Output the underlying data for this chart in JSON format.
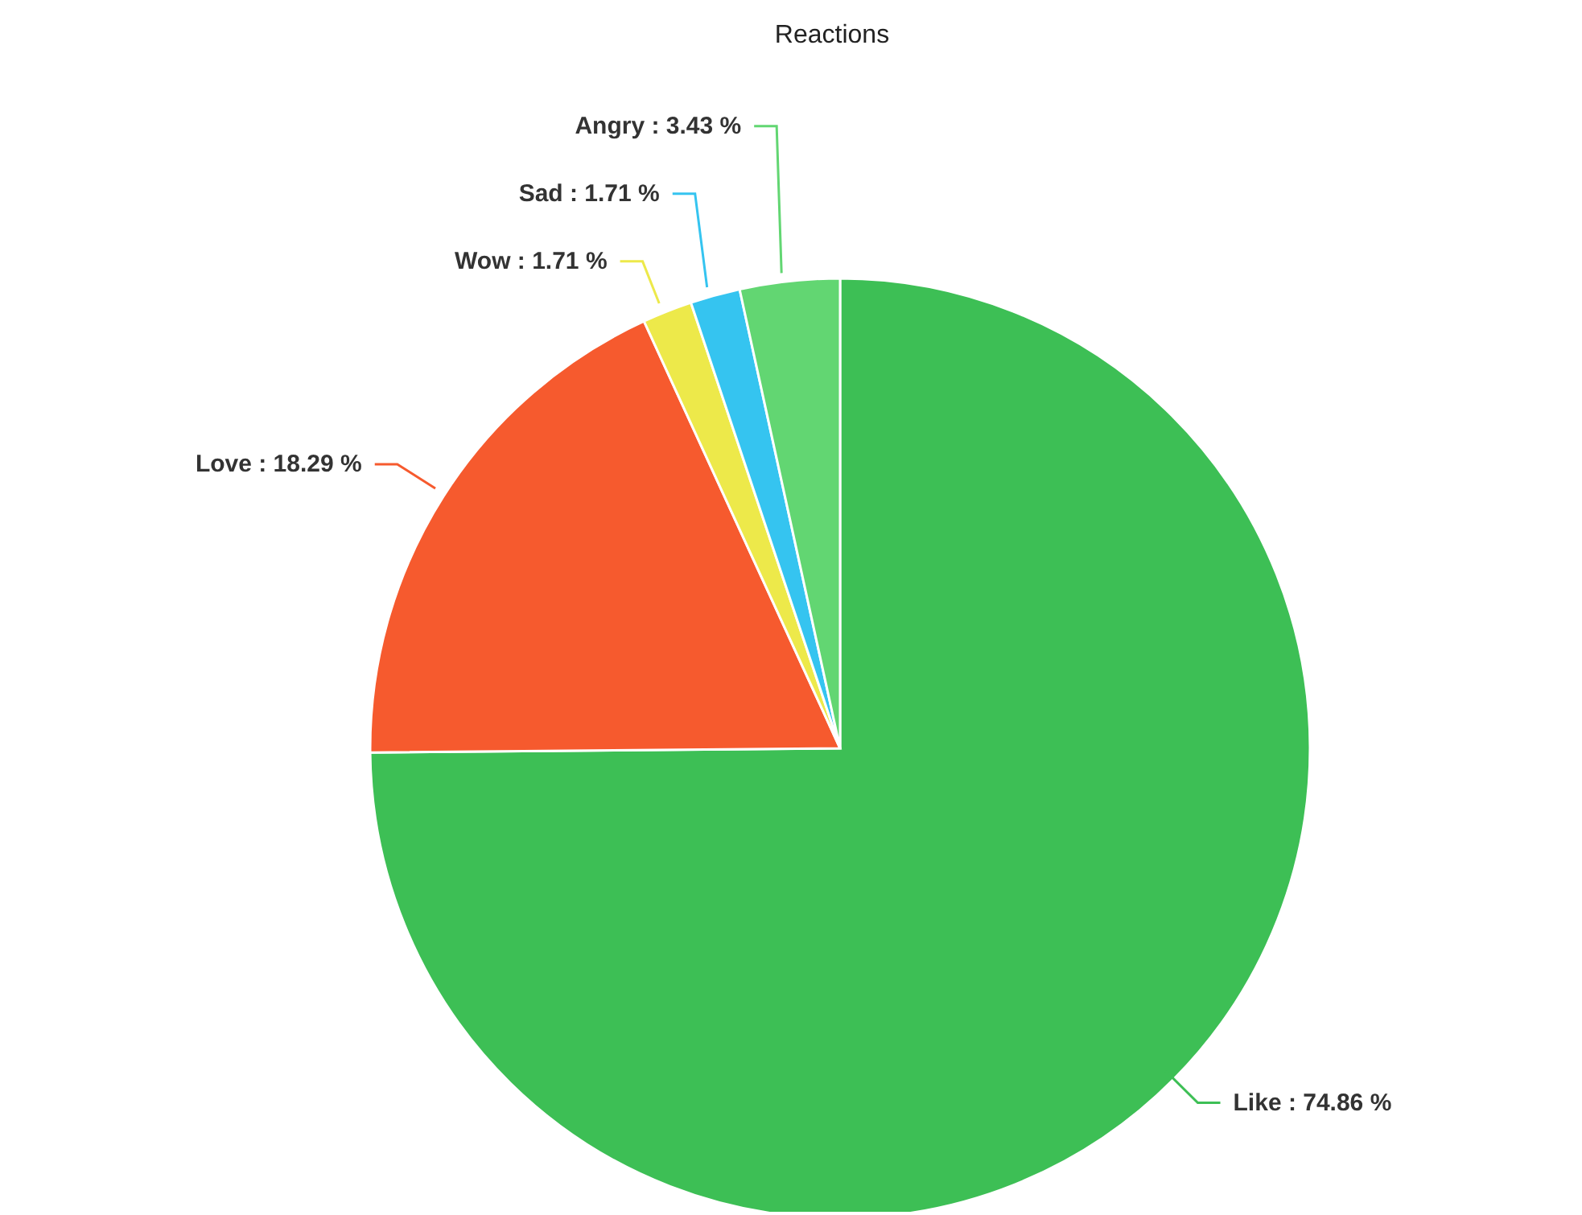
{
  "chart_data": {
    "type": "pie",
    "title": "Reactions",
    "categories": [
      "Like",
      "Love",
      "Wow",
      "Sad",
      "Angry"
    ],
    "values": [
      74.86,
      18.29,
      1.71,
      1.71,
      3.43
    ],
    "colors": [
      "#3dbf55",
      "#f65a2e",
      "#ede94a",
      "#35c4f0",
      "#62d672"
    ],
    "value_labels": [
      "74.86 %",
      "18.29 %",
      "1.71 %",
      "1.71 %",
      "3.43 %"
    ]
  }
}
